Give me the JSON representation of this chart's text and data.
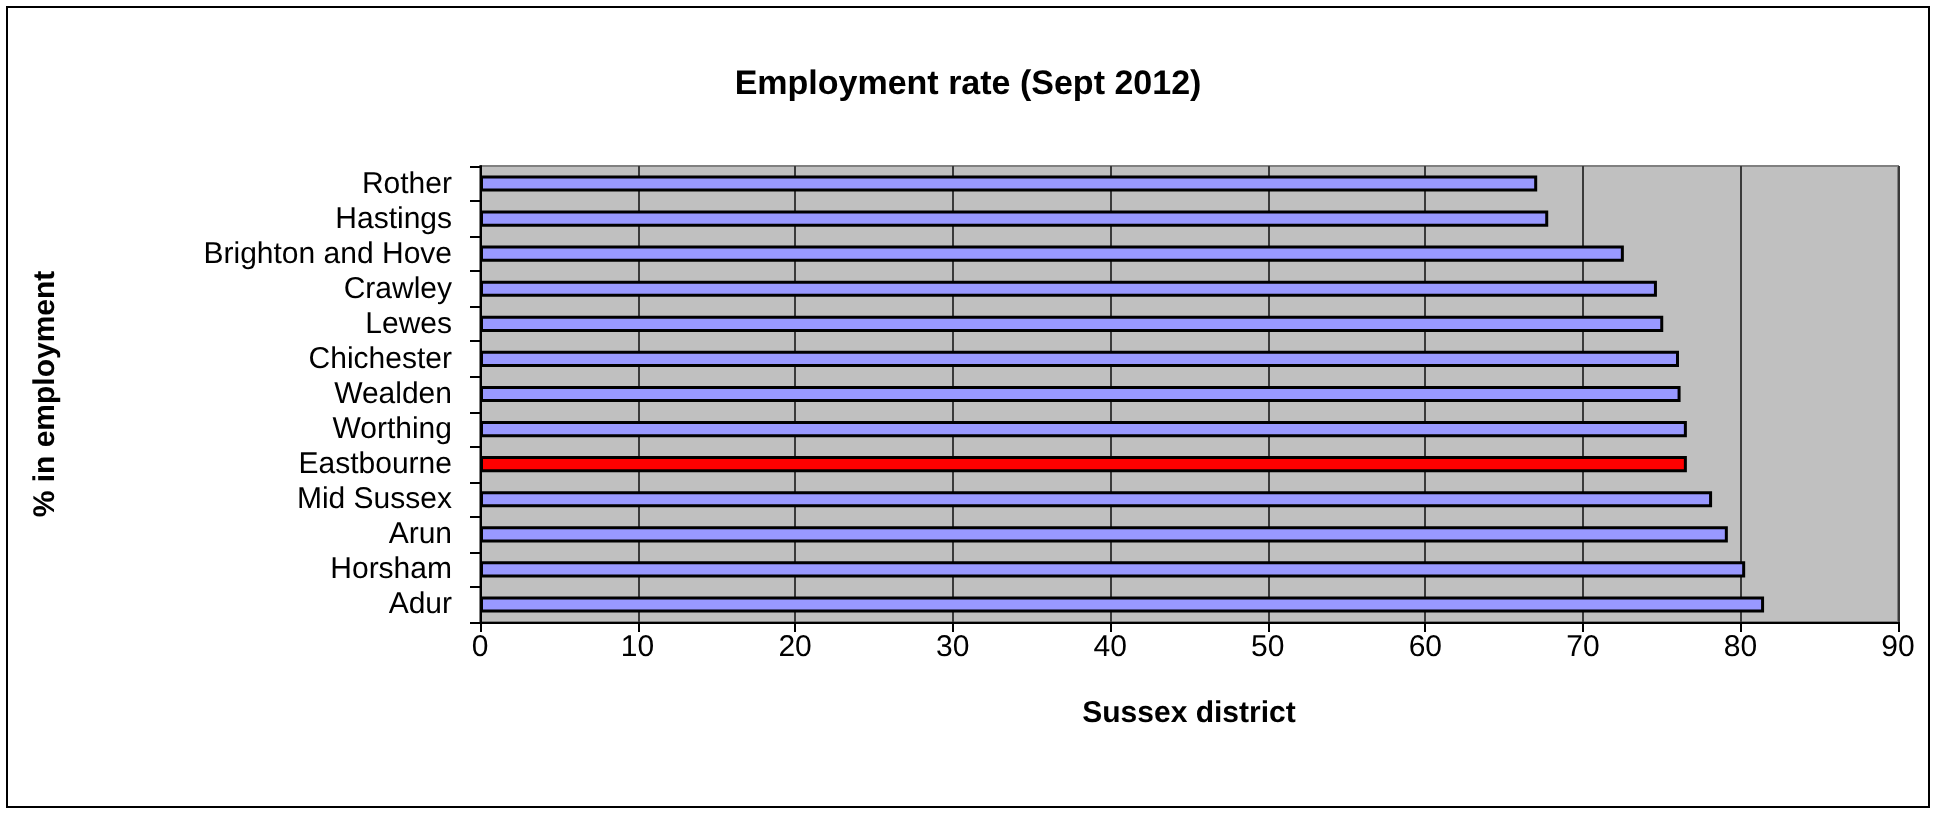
{
  "chart_data": {
    "type": "bar",
    "orientation": "horizontal",
    "title": "Employment rate (Sept 2012)",
    "xlabel": "Sussex district",
    "ylabel": "% in employment",
    "categories": [
      "Rother",
      "Hastings",
      "Brighton and Hove",
      "Crawley",
      "Lewes",
      "Chichester",
      "Wealden",
      "Worthing",
      "Eastbourne",
      "Mid Sussex",
      "Arun",
      "Horsham",
      "Adur"
    ],
    "values": [
      67.1,
      67.8,
      72.6,
      74.7,
      75.1,
      76.1,
      76.2,
      76.6,
      76.6,
      78.2,
      79.2,
      80.3,
      81.5
    ],
    "colors": [
      "#9999ff",
      "#9999ff",
      "#9999ff",
      "#9999ff",
      "#9999ff",
      "#9999ff",
      "#9999ff",
      "#9999ff",
      "#ff0000",
      "#9999ff",
      "#9999ff",
      "#9999ff",
      "#9999ff"
    ],
    "xlim": [
      0,
      90
    ],
    "xticks": [
      0,
      10,
      20,
      30,
      40,
      50,
      60,
      70,
      80,
      90
    ],
    "grid": "x"
  }
}
